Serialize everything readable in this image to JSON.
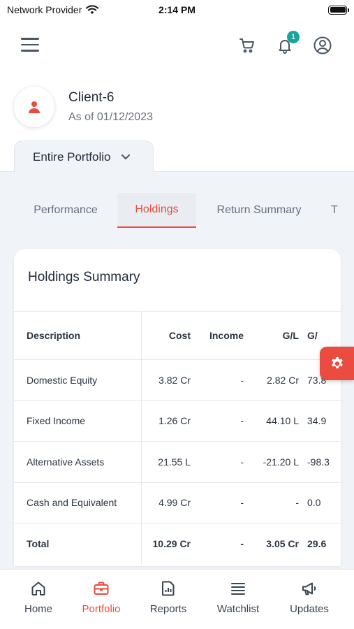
{
  "status_bar": {
    "carrier": "Network Provider",
    "time": "2:14 PM"
  },
  "top_bar": {
    "notification_count": "1"
  },
  "client": {
    "name": "Client-6",
    "as_of": "As of 01/12/2023"
  },
  "portfolio_selector": {
    "selected": "Entire Portfolio"
  },
  "tabs": [
    {
      "label": "Performance",
      "active": false
    },
    {
      "label": "Holdings",
      "active": true
    },
    {
      "label": "Return Summary",
      "active": false
    },
    {
      "label": "T",
      "active": false
    }
  ],
  "holdings_summary": {
    "title": "Holdings Summary",
    "columns": [
      "Description",
      "Cost",
      "Income",
      "G/L",
      "G/"
    ],
    "rows": [
      [
        "Domestic Equity",
        "3.82 Cr",
        "-",
        "2.82 Cr",
        "73.8"
      ],
      [
        "Fixed Income",
        "1.26 Cr",
        "-",
        "44.10 L",
        "34.9"
      ],
      [
        "Alternative Assets",
        "21.55 L",
        "-",
        "-21.20 L",
        "-98.3"
      ],
      [
        "Cash and Equivalent",
        "4.99 Cr",
        "-",
        "-",
        "0.0"
      ]
    ],
    "total": [
      "Total",
      "10.29 Cr",
      "-",
      "3.05 Cr",
      "29.6"
    ]
  },
  "bottom_nav": [
    {
      "label": "Home",
      "icon": "home-icon",
      "active": false
    },
    {
      "label": "Portfolio",
      "icon": "briefcase-icon",
      "active": true
    },
    {
      "label": "Reports",
      "icon": "report-icon",
      "active": false
    },
    {
      "label": "Watchlist",
      "icon": "list-icon",
      "active": false
    },
    {
      "label": "Updates",
      "icon": "megaphone-icon",
      "active": false
    }
  ],
  "colors": {
    "accent": "#ea4c40",
    "badge": "#1aa59a",
    "background": "#f0f3f7"
  }
}
